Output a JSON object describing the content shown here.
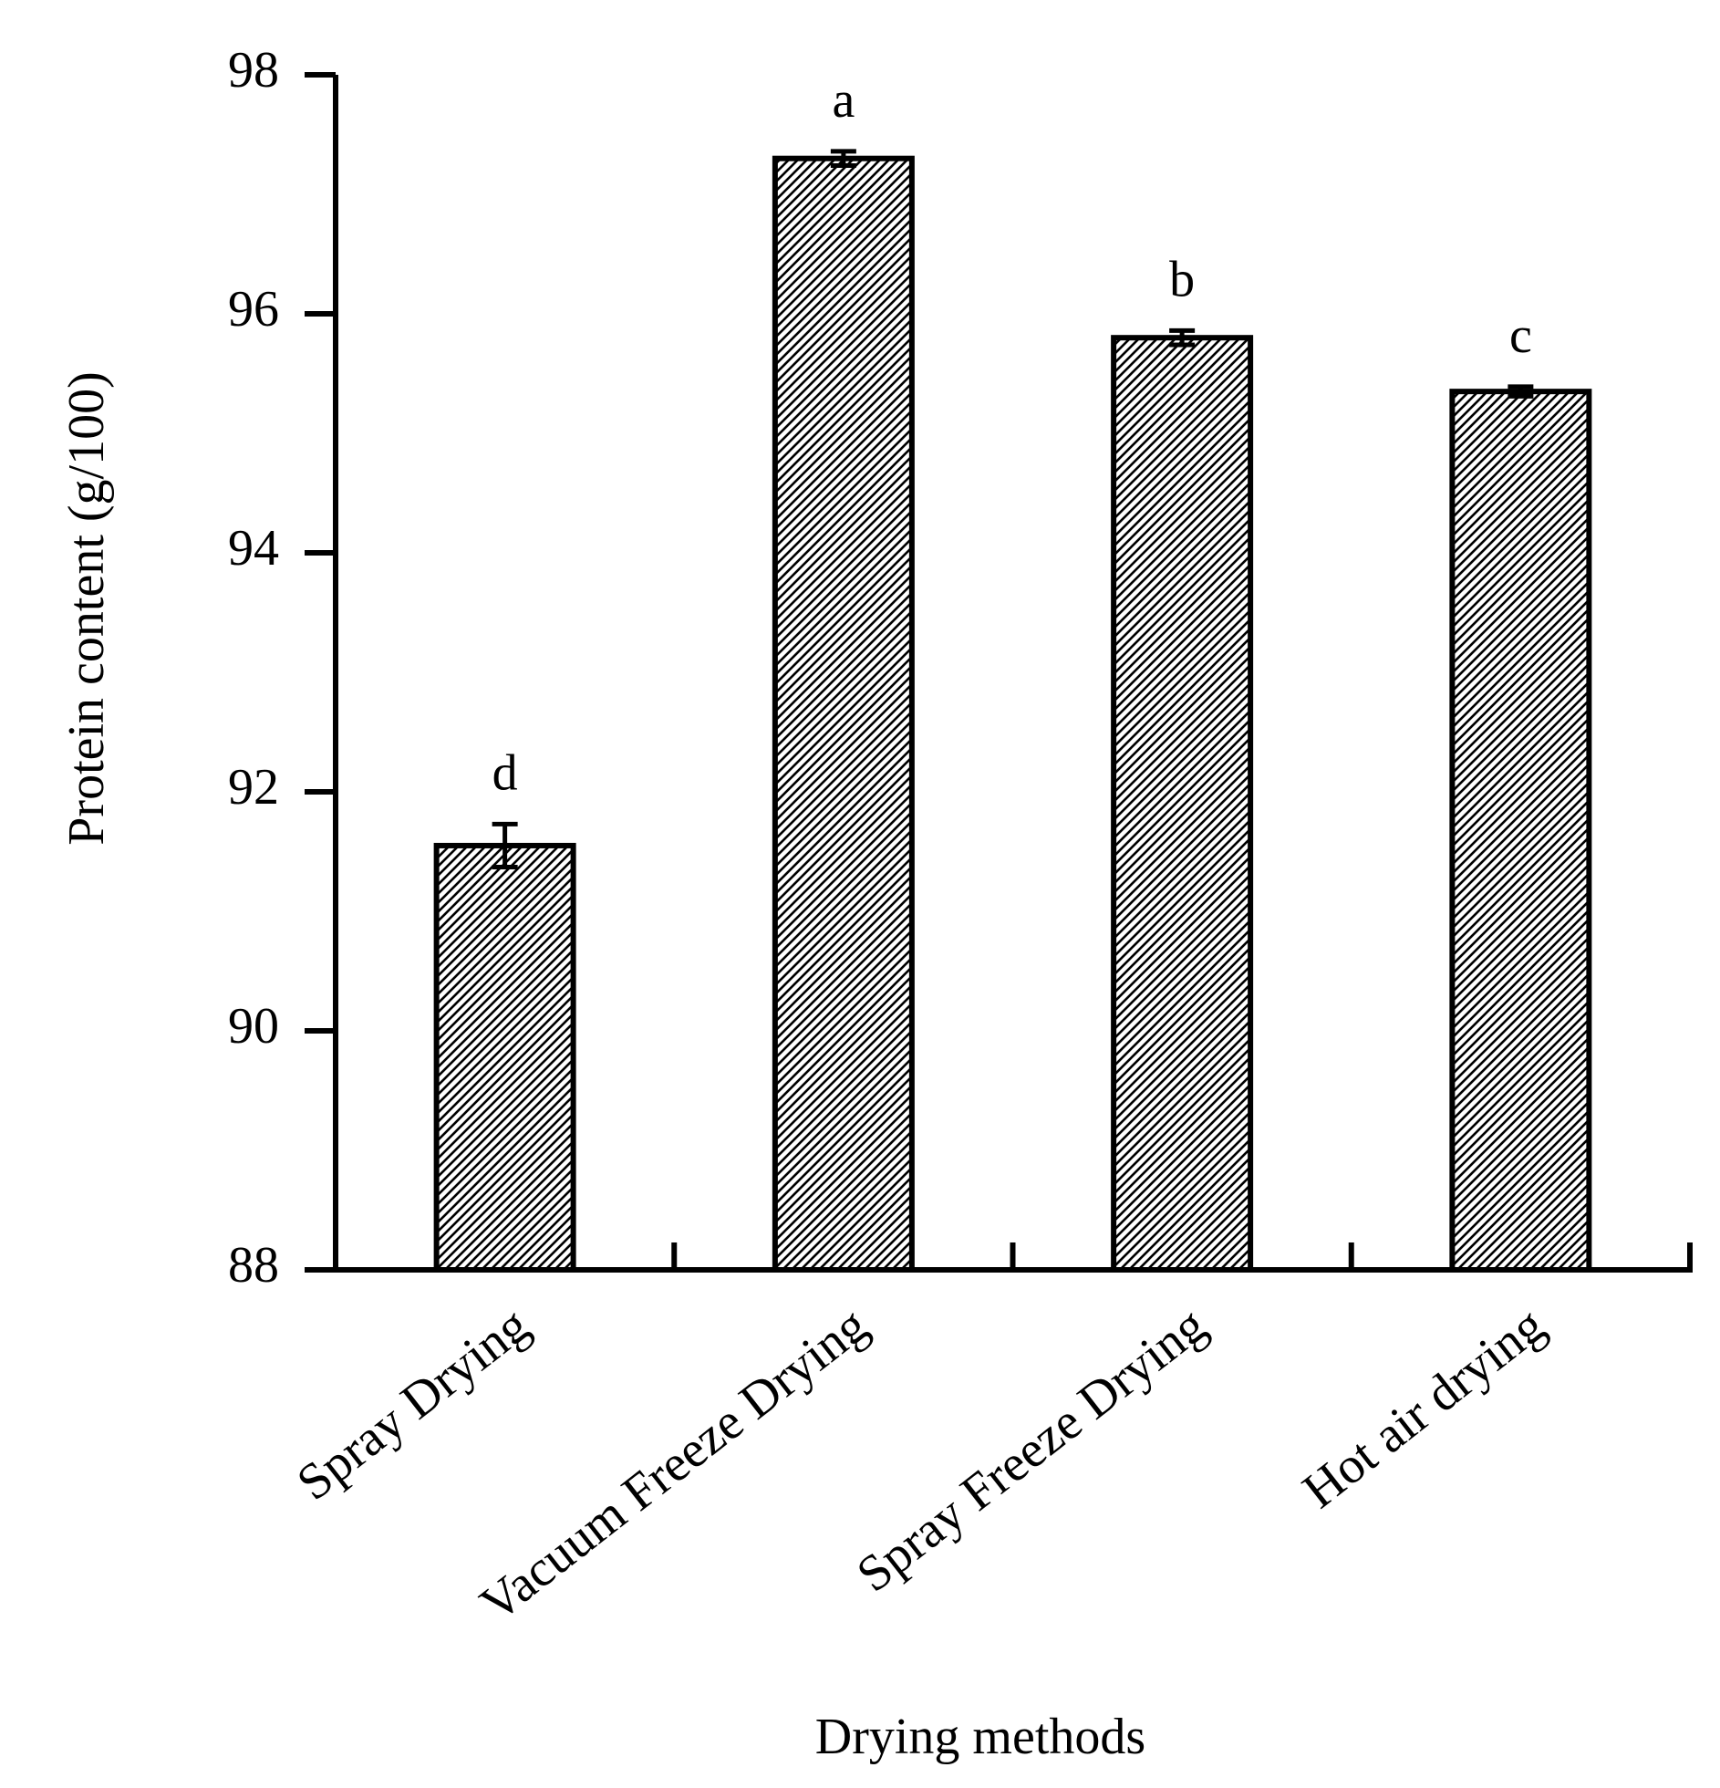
{
  "chart_data": {
    "type": "bar",
    "title": "",
    "xlabel": "Drying methods",
    "ylabel": "Protein content (g/100)",
    "ylim": [
      88,
      98
    ],
    "yticks": [
      88,
      90,
      92,
      94,
      96,
      98
    ],
    "ytick_labels": [
      "88",
      "90",
      "92",
      "94",
      "96",
      "98"
    ],
    "grid": false,
    "bar_fill": "hatched",
    "colors": {
      "bar_stroke": "#000000",
      "hatch": "#000000",
      "background": "#ffffff"
    },
    "categories": [
      "Spray Drying",
      "Vacuum Freeze Drying",
      "Spray Freeze Drying",
      "Hot air drying"
    ],
    "values": [
      91.55,
      97.3,
      95.8,
      95.35
    ],
    "errors": [
      0.18,
      0.06,
      0.06,
      0.04
    ],
    "significance": [
      "d",
      "a",
      "b",
      "c"
    ]
  }
}
